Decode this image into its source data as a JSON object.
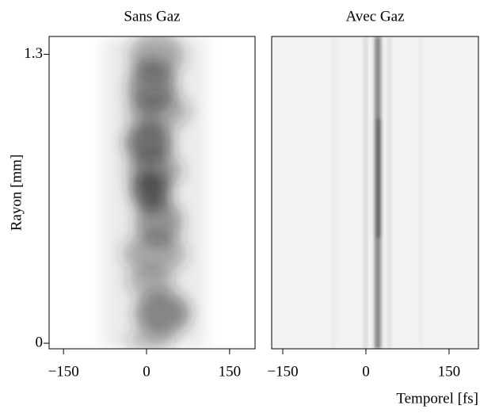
{
  "chart_data": [
    {
      "type": "image",
      "title": "Sans Gaz",
      "ylabel": "Rayon [mm]",
      "xlim": [
        -176,
        196
      ],
      "xticks": [
        {
          "value": -150,
          "label": "−150"
        },
        0,
        150
      ],
      "ylim": [
        -0.025,
        1.38
      ],
      "yticks": [
        0,
        1.3
      ]
    },
    {
      "type": "image",
      "title": "Avec Gaz",
      "xlabel": "Temporel [fs]",
      "xlim": [
        -170,
        203
      ],
      "xticks": [
        {
          "value": -150,
          "label": "−150"
        },
        0,
        150
      ],
      "ylim": [
        -0.025,
        1.38
      ]
    }
  ]
}
